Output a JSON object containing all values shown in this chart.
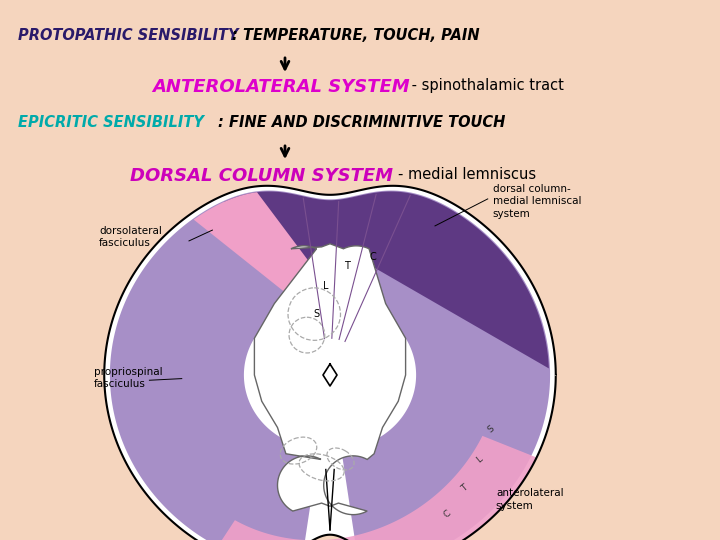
{
  "bg_color": "#f5d5be",
  "fig_bg": "#f5d5be",
  "proto_color": "#2a1a6a",
  "anterolateral_color": "#dd00cc",
  "epicritic_color": "#00aaaa",
  "dorsal_color": "#cc00bb",
  "black": "#000000",
  "pink_region": "#f0a0c8",
  "purple_region": "#9b80c0",
  "dark_purple": "#5a3580",
  "dark_purple2": "#4a2870",
  "white": "#ffffff",
  "gray_outline": "#666666",
  "dashed_circle": "#aaaaaa",
  "line1_proto": "PROTOPATHIC SENSIBILITY",
  "line1_rest": ": TEMPERATURE, TOUCH, PAIN",
  "line2_antero": "ANTEROLATERAL SYSTEM",
  "line2_rest": " - spinothalamic tract",
  "line3_epi": "EPICRITIC SENSIBILITY",
  "line3_rest": ": FINE AND DISCRIMINITIVE TOUCH",
  "line4_dorsal": "DORSAL COLUMN SYSTEM",
  "line4_rest": "- medial lemniscus",
  "label_dc": "dorsal column-\nmedial lemniscal\nsystem",
  "label_dl": "dorsolateral\nfasciculus",
  "label_ps": "propriospinal\nfasciculus",
  "label_al": "anterolateral\nsystem"
}
